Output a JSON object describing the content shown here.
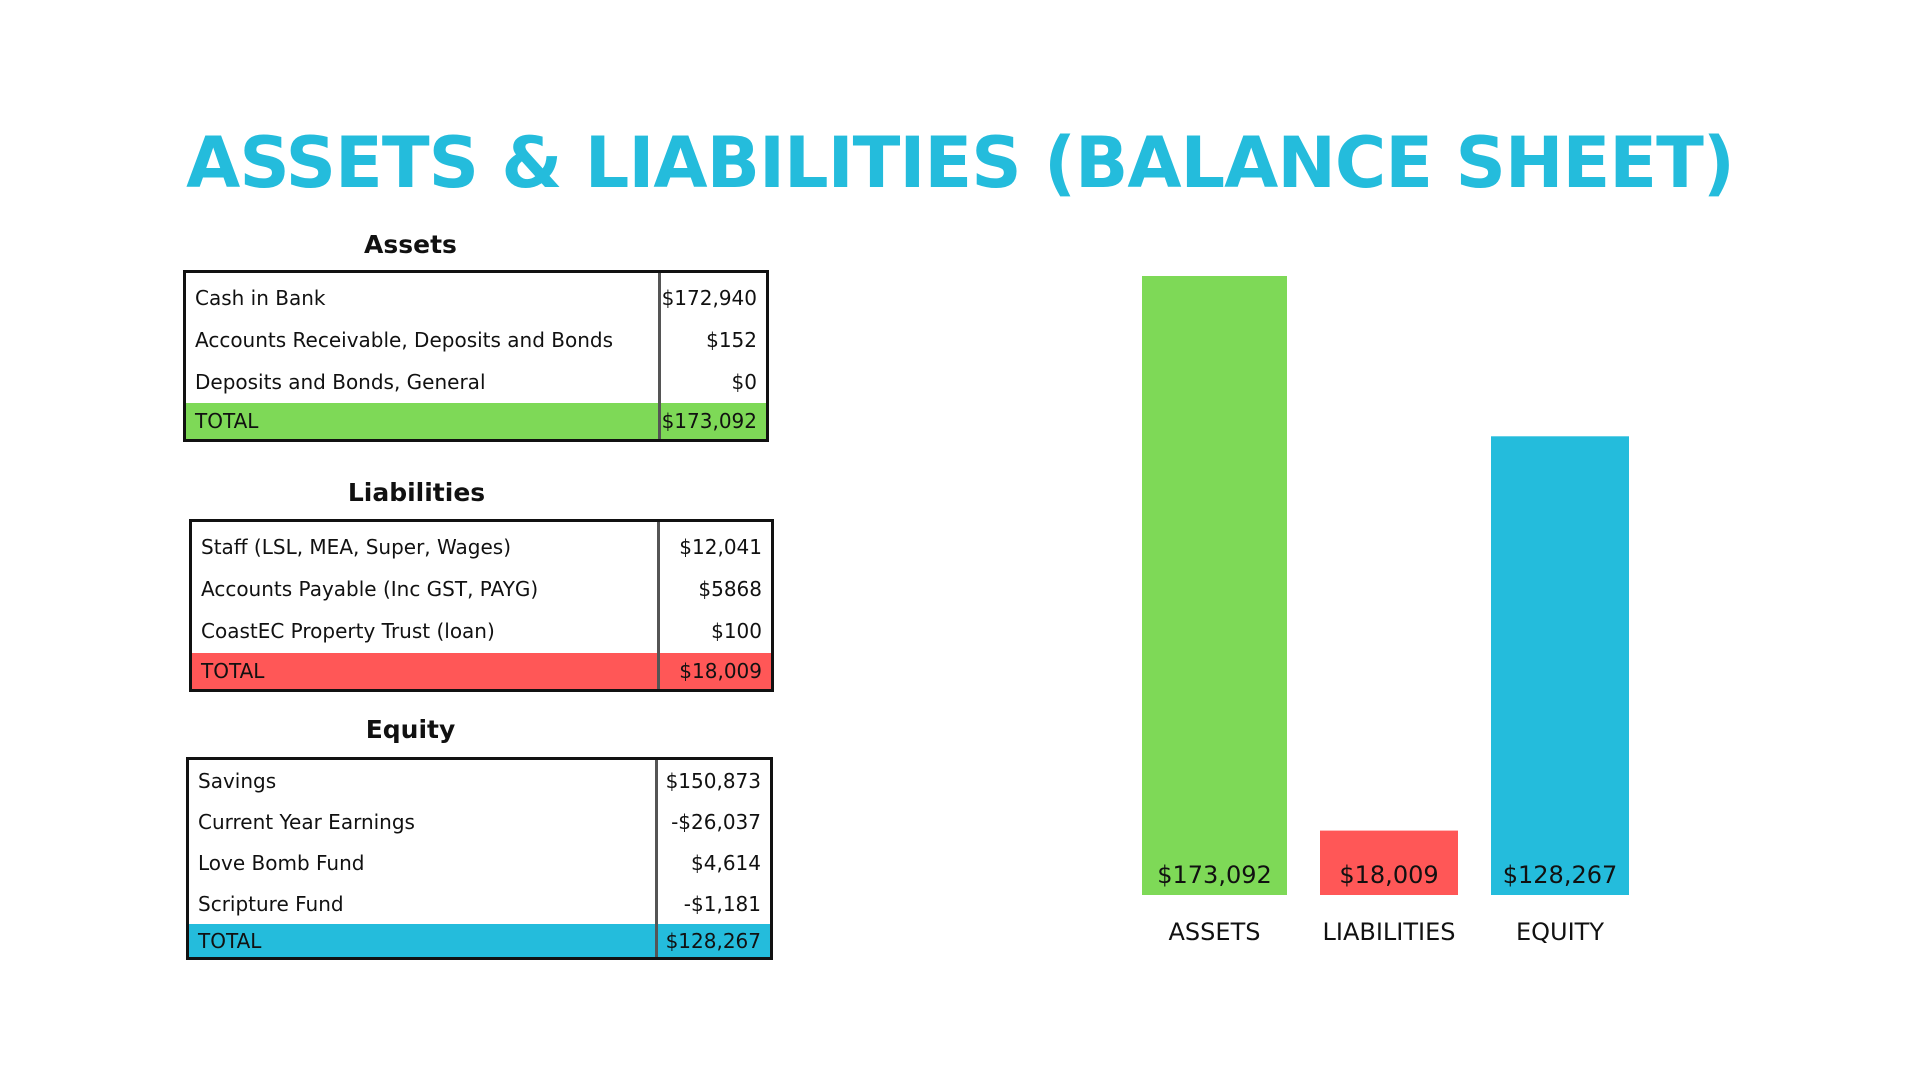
{
  "title": "ASSETS & LIABILITIES (BALANCE SHEET)",
  "colors": {
    "accent": "#24bcdc",
    "assets": "#7ed957",
    "liabilities": "#ff5757",
    "equity": "#24bcdc"
  },
  "tables": {
    "assets": {
      "heading": "Assets",
      "rows": [
        {
          "label": "Cash in Bank",
          "value": "$172,940"
        },
        {
          "label": "Accounts Receivable, Deposits and Bonds",
          "value": "$152"
        },
        {
          "label": "Deposits and Bonds, General",
          "value": "$0"
        }
      ],
      "total": {
        "label": "TOTAL",
        "value": "$173,092"
      }
    },
    "liabilities": {
      "heading": "Liabilities",
      "rows": [
        {
          "label": "Staff (LSL, MEA, Super, Wages)",
          "value": "$12,041"
        },
        {
          "label": "Accounts Payable (Inc GST, PAYG)",
          "value": "$5868"
        },
        {
          "label": "CoastEC Property Trust (loan)",
          "value": "$100"
        }
      ],
      "total": {
        "label": "TOTAL",
        "value": "$18,009"
      }
    },
    "equity": {
      "heading": "Equity",
      "rows": [
        {
          "label": "Savings",
          "value": "$150,873"
        },
        {
          "label": "Current Year Earnings",
          "value": "-$26,037"
        },
        {
          "label": "Love Bomb Fund",
          "value": "$4,614"
        },
        {
          "label": "Scripture Fund",
          "value": "-$1,181"
        }
      ],
      "total": {
        "label": "TOTAL",
        "value": "$128,267"
      }
    }
  },
  "chart_data": {
    "type": "bar",
    "categories": [
      "ASSETS",
      "LIABILITIES",
      "EQUITY"
    ],
    "values": [
      173092,
      18009,
      128267
    ],
    "data_labels": [
      "$173,092",
      "$18,009",
      "$128,267"
    ],
    "colors": [
      "#7ed957",
      "#ff5757",
      "#24bcdc"
    ],
    "title": "",
    "xlabel": "",
    "ylabel": "",
    "ylim": [
      0,
      173092
    ],
    "grid": false
  }
}
